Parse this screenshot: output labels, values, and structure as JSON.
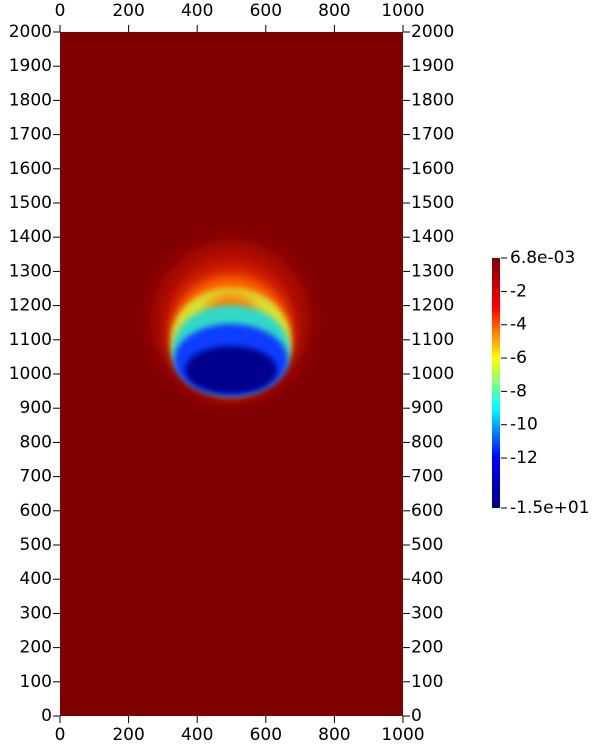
{
  "chart_data": {
    "type": "field",
    "xlim": [
      0,
      1000
    ],
    "ylim": [
      0,
      2000
    ],
    "xticks": [
      0,
      200,
      400,
      600,
      800,
      1000
    ],
    "yticks": [
      0,
      100,
      200,
      300,
      400,
      500,
      600,
      700,
      800,
      900,
      1000,
      1100,
      1200,
      1300,
      1400,
      1500,
      1600,
      1700,
      1800,
      1900,
      2000
    ],
    "background": "#7f0000",
    "colorbar": {
      "clim": [
        -15,
        0.0068
      ],
      "ticks": [
        {
          "value": 0.0068,
          "label": "6.8e-03"
        },
        -2,
        -4,
        -6,
        -8,
        -10,
        -12,
        {
          "value": -15,
          "label": "-1.5e+01"
        }
      ],
      "colormap": [
        "#00007f",
        "#0000ff",
        "#00ffff",
        "#ffff00",
        "#ff0000",
        "#7f0000"
      ]
    }
  }
}
